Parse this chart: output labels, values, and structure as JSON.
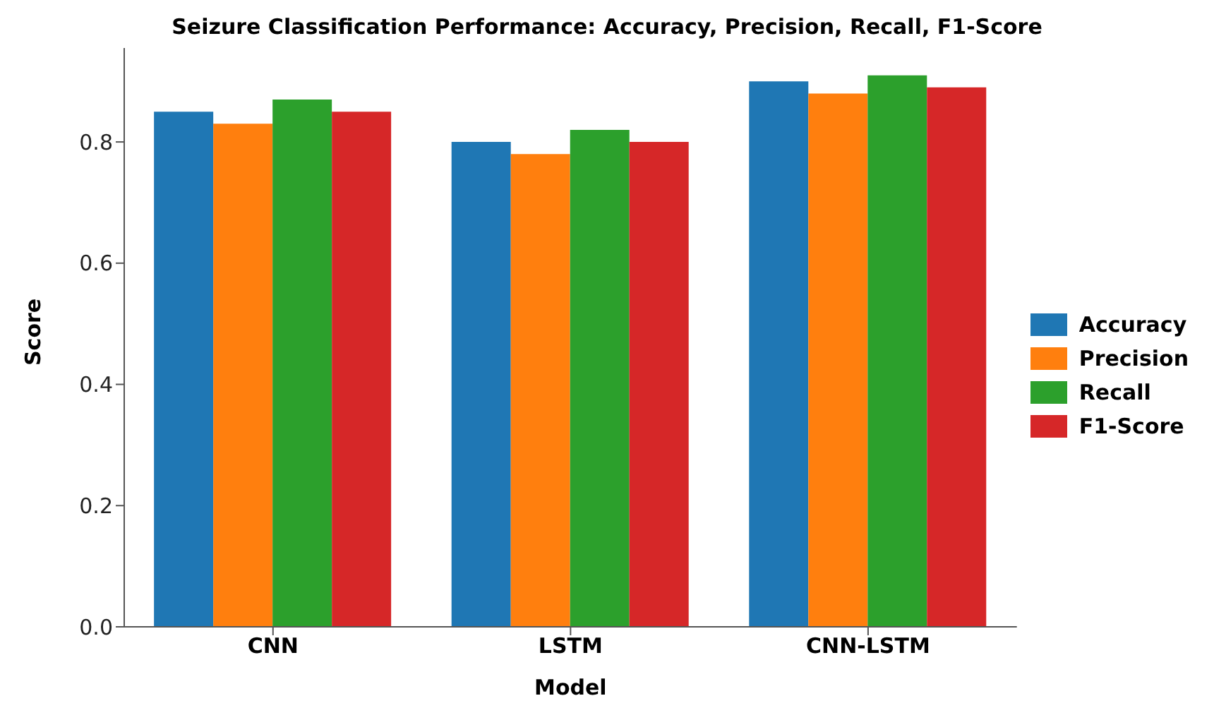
{
  "chart_data": {
    "type": "bar",
    "title": "Seizure Classification Performance: Accuracy, Precision, Recall, F1-Score",
    "xlabel": "Model",
    "ylabel": "Score",
    "categories": [
      "CNN",
      "LSTM",
      "CNN-LSTM"
    ],
    "series": [
      {
        "name": "Accuracy",
        "color": "#1f77b4",
        "values": [
          0.85,
          0.8,
          0.9
        ]
      },
      {
        "name": "Precision",
        "color": "#ff7f0e",
        "values": [
          0.83,
          0.78,
          0.88
        ]
      },
      {
        "name": "Recall",
        "color": "#2ca02c",
        "values": [
          0.87,
          0.82,
          0.91
        ]
      },
      {
        "name": "F1-Score",
        "color": "#d62728",
        "values": [
          0.85,
          0.8,
          0.89
        ]
      }
    ],
    "ylim": [
      0,
      0.955
    ],
    "yticks": [
      {
        "value": 0,
        "label": "0.0"
      },
      0.2,
      0.4,
      0.6,
      0.8
    ],
    "grid": false,
    "legend": "right"
  }
}
